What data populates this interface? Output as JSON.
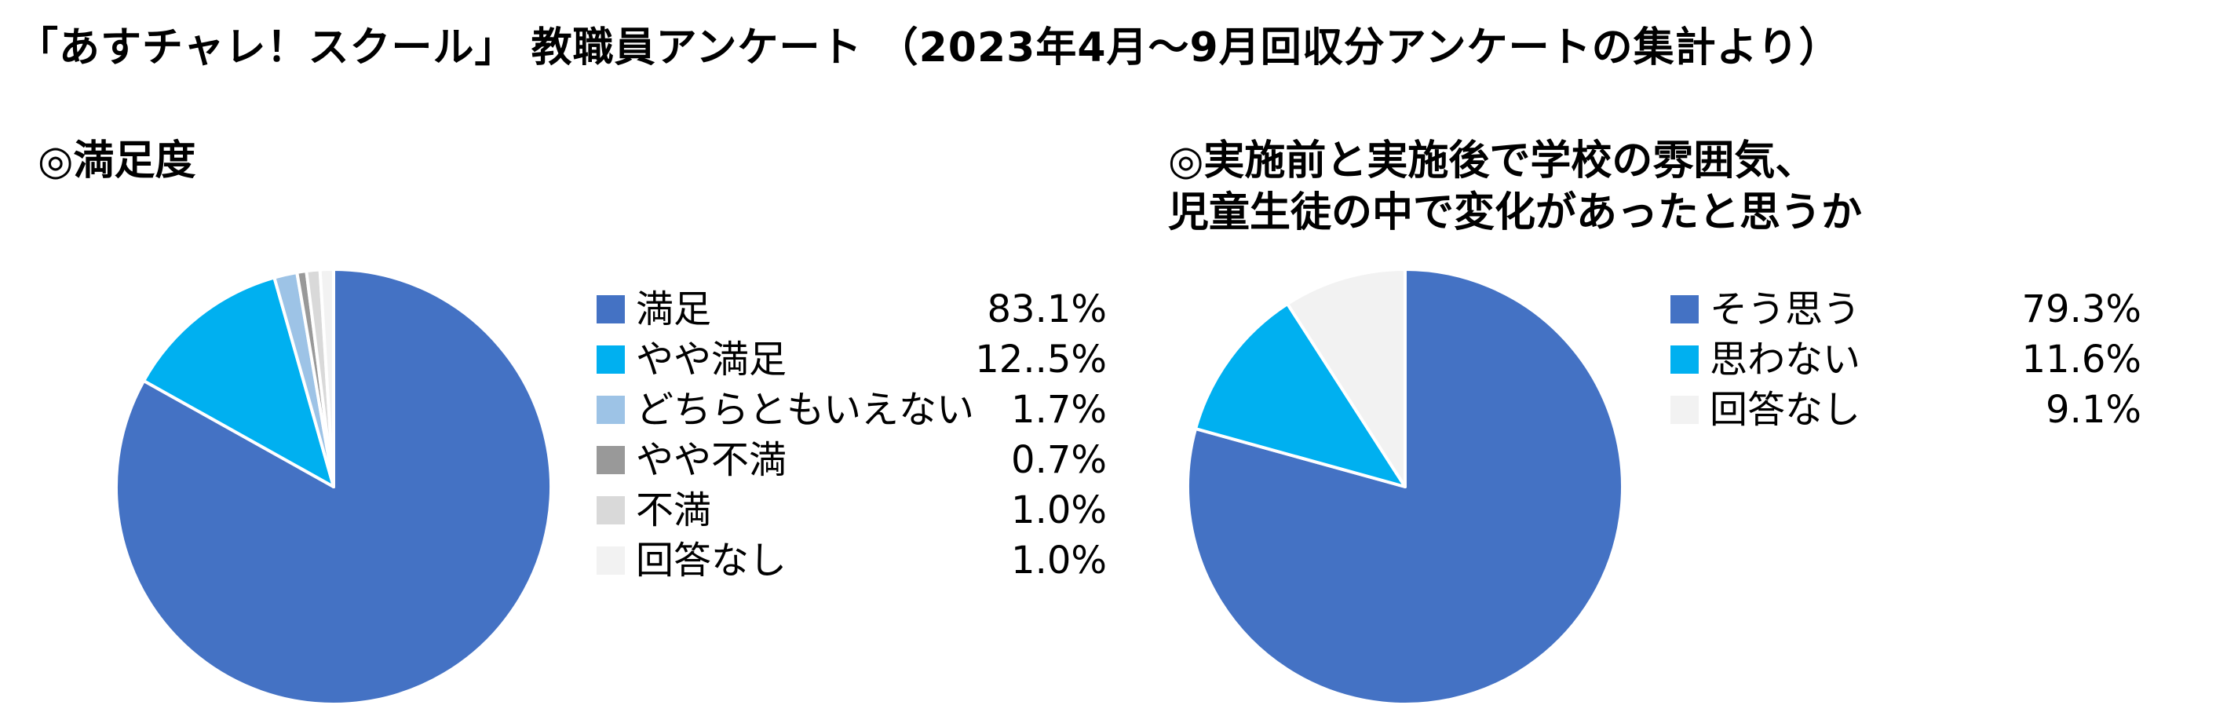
{
  "title": "「あすチャレ！スクール」 教職員アンケート （2023年4月～9月回収分アンケートの集計より）",
  "chart_data": [
    {
      "type": "pie",
      "title": "◎満足度",
      "categories": [
        "満足",
        "やや満足",
        "どちらともいえない",
        "やや不満",
        "不満",
        "回答なし"
      ],
      "values": [
        83.1,
        12.5,
        1.7,
        0.7,
        1.0,
        1.0
      ],
      "value_labels": [
        "83.1%",
        "12..5%",
        "1.7%",
        "0.7%",
        "1.0%",
        "1.0%"
      ],
      "colors": [
        "#4472C4",
        "#00B0F0",
        "#9DC3E6",
        "#999999",
        "#D9D9D9",
        "#F2F2F2"
      ],
      "legend_position": "right"
    },
    {
      "type": "pie",
      "title": "◎実施前と実施後で学校の雰囲気、\n 児童生徒の中で変化があったと思うか",
      "categories": [
        "そう思う",
        "思わない",
        "回答なし"
      ],
      "values": [
        79.3,
        11.6,
        9.1
      ],
      "value_labels": [
        "79.3%",
        "11.6%",
        "9.1%"
      ],
      "colors": [
        "#4472C4",
        "#00B0F0",
        "#F2F2F2"
      ],
      "legend_position": "right"
    }
  ]
}
